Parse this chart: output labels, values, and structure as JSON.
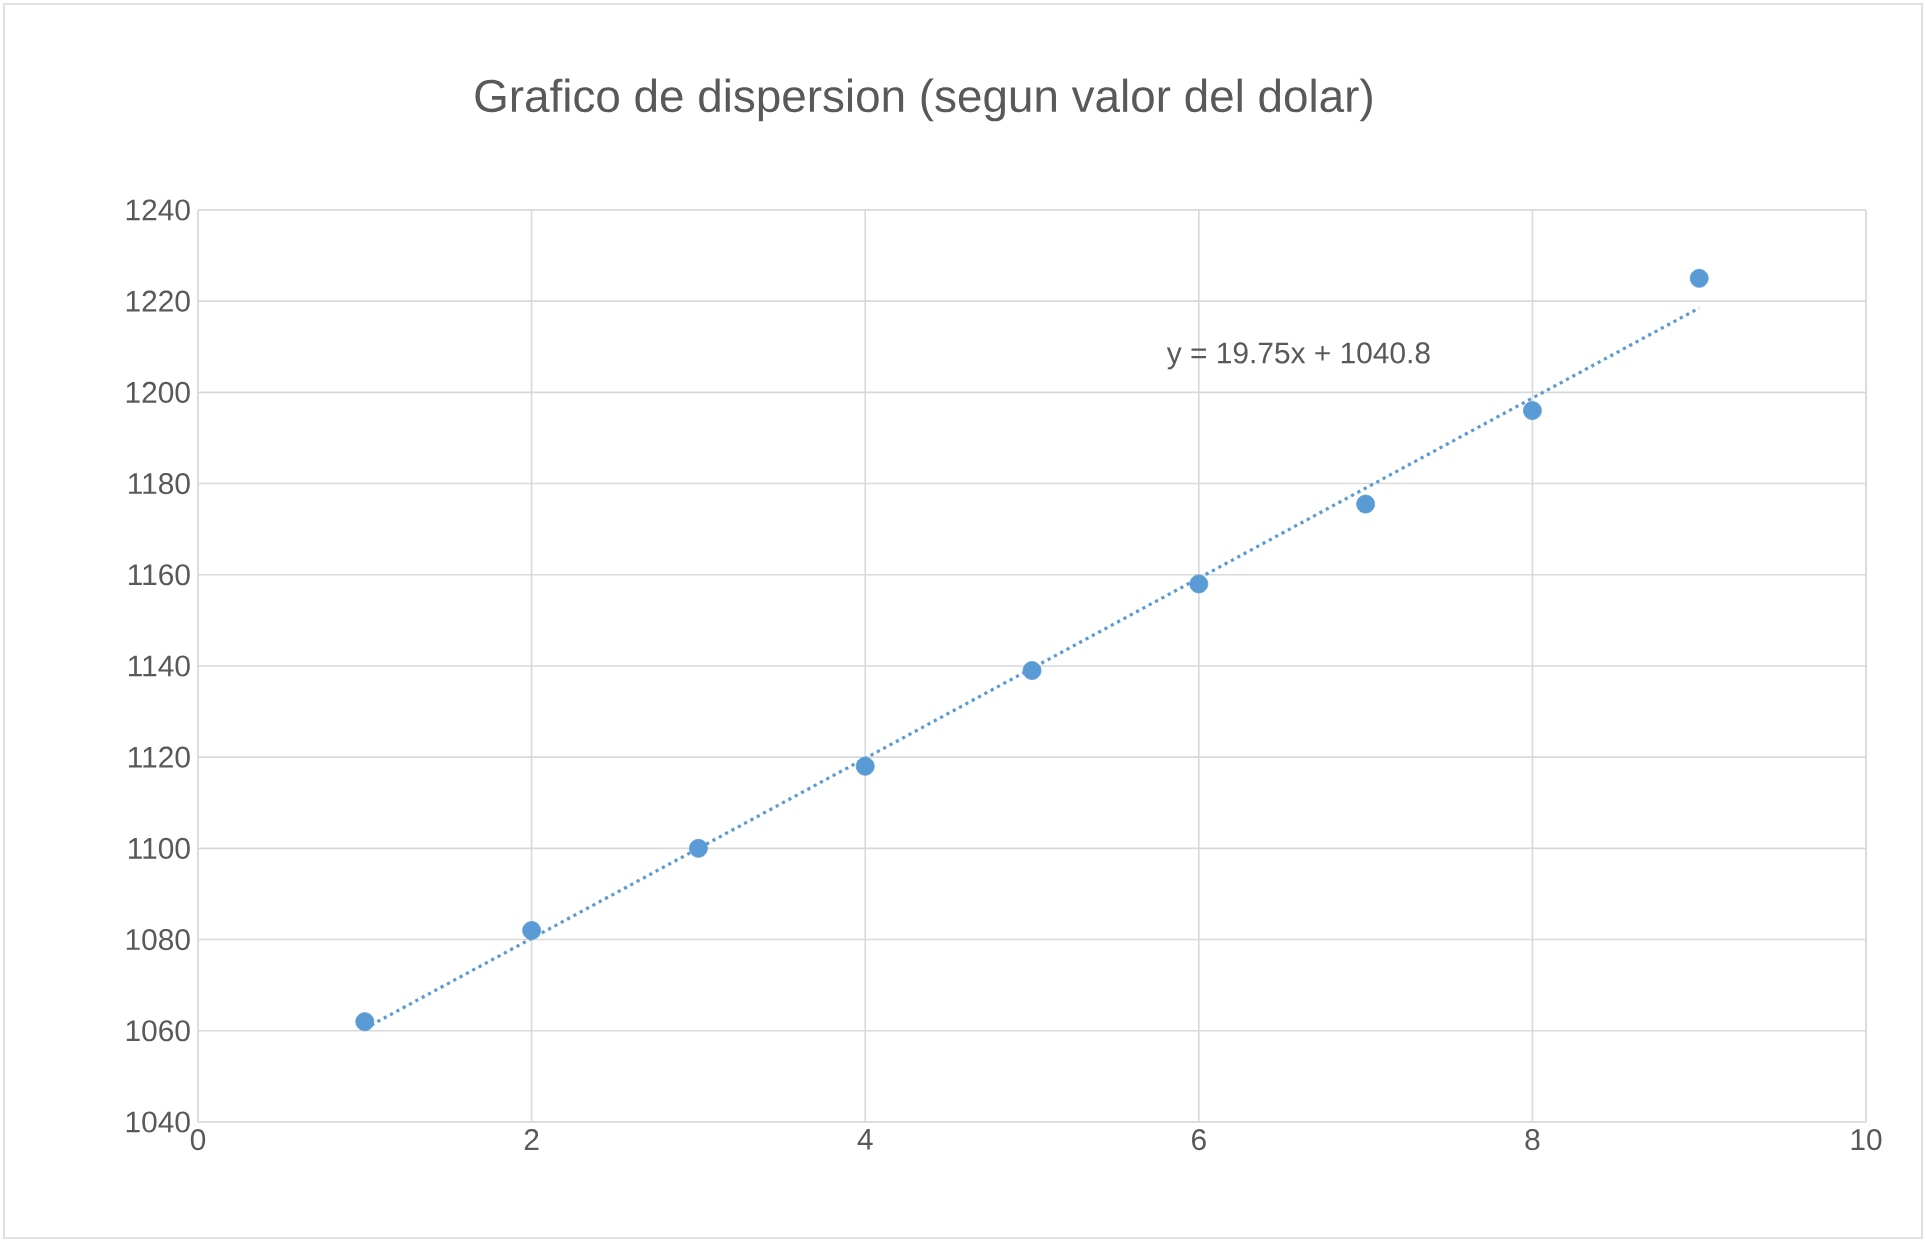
{
  "chart_data": {
    "type": "scatter",
    "title": "Grafico de dispersion (segun valor del dolar)",
    "x": [
      1,
      2,
      3,
      4,
      5,
      6,
      7,
      8,
      9
    ],
    "series": [
      {
        "type": "scatter",
        "color": "#5b9bd5",
        "marker": "circle",
        "values": [
          1062,
          1082,
          1100,
          1118,
          1139,
          1158,
          1175.5,
          1196,
          1225
        ]
      },
      {
        "type": "line",
        "color": "#5b9bd5",
        "line_style": "dotted",
        "marker": "none",
        "x": [
          1,
          9
        ],
        "values": [
          1060.5,
          1218.5
        ]
      }
    ],
    "annotations": [
      "y = 19.75x + 1040.8"
    ],
    "xlim": [
      0,
      10
    ],
    "xticks": [
      0,
      2,
      4,
      6,
      8,
      10
    ],
    "ylim": [
      1040,
      1240
    ],
    "yticks": [
      1040,
      1060,
      1080,
      1100,
      1120,
      1140,
      1160,
      1180,
      1200,
      1220,
      1240
    ],
    "grid": true
  }
}
